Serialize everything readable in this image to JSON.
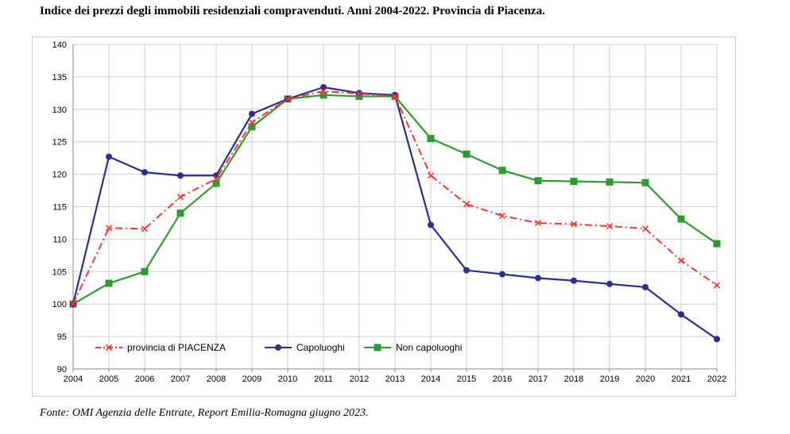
{
  "title": "Indice dei prezzi degli immobili residenziali compravenduti. Anni 2004-2022. Provincia di Piacenza.",
  "source": "Fonte: OMI Agenzia delle Entrate, Report Emilia-Romagna giugno 2023.",
  "chart_data": {
    "type": "line",
    "title": "",
    "xlabel": "",
    "ylabel": "",
    "x": [
      "2004",
      "2005",
      "2006",
      "2007",
      "2008",
      "2009",
      "2010",
      "2011",
      "2012",
      "2013",
      "2014",
      "2015",
      "2016",
      "2017",
      "2018",
      "2019",
      "2020",
      "2021",
      "2022"
    ],
    "ylim": [
      90,
      140
    ],
    "yticks": [
      90,
      95,
      100,
      105,
      110,
      115,
      120,
      125,
      130,
      135,
      140
    ],
    "grid": true,
    "legend_position": "bottom-left",
    "series": [
      {
        "name": "provincia di PIACENZA",
        "color": "#ff3333",
        "style": "dash-dot",
        "marker": "x",
        "values": [
          100,
          111.7,
          111.6,
          116.5,
          119.3,
          128,
          131.6,
          132.8,
          132.4,
          132,
          119.8,
          115.4,
          113.6,
          112.5,
          112.3,
          112,
          111.6,
          106.7,
          102.9
        ]
      },
      {
        "name": "Capoluoghi",
        "color": "#2e2e8f",
        "style": "solid",
        "marker": "circle",
        "values": [
          100,
          122.7,
          120.3,
          119.8,
          119.8,
          129.3,
          131.6,
          133.4,
          132.5,
          132.2,
          112.2,
          105.2,
          104.6,
          104,
          103.6,
          103.1,
          102.6,
          98.4,
          94.6
        ]
      },
      {
        "name": "Non capoluoghi",
        "color": "#2f9a2f",
        "style": "solid",
        "marker": "square",
        "values": [
          100,
          103.2,
          105,
          114,
          118.6,
          127.3,
          131.6,
          132.2,
          132,
          132,
          125.5,
          123.1,
          120.6,
          119,
          118.9,
          118.8,
          118.7,
          113.1,
          109.3
        ]
      }
    ]
  }
}
